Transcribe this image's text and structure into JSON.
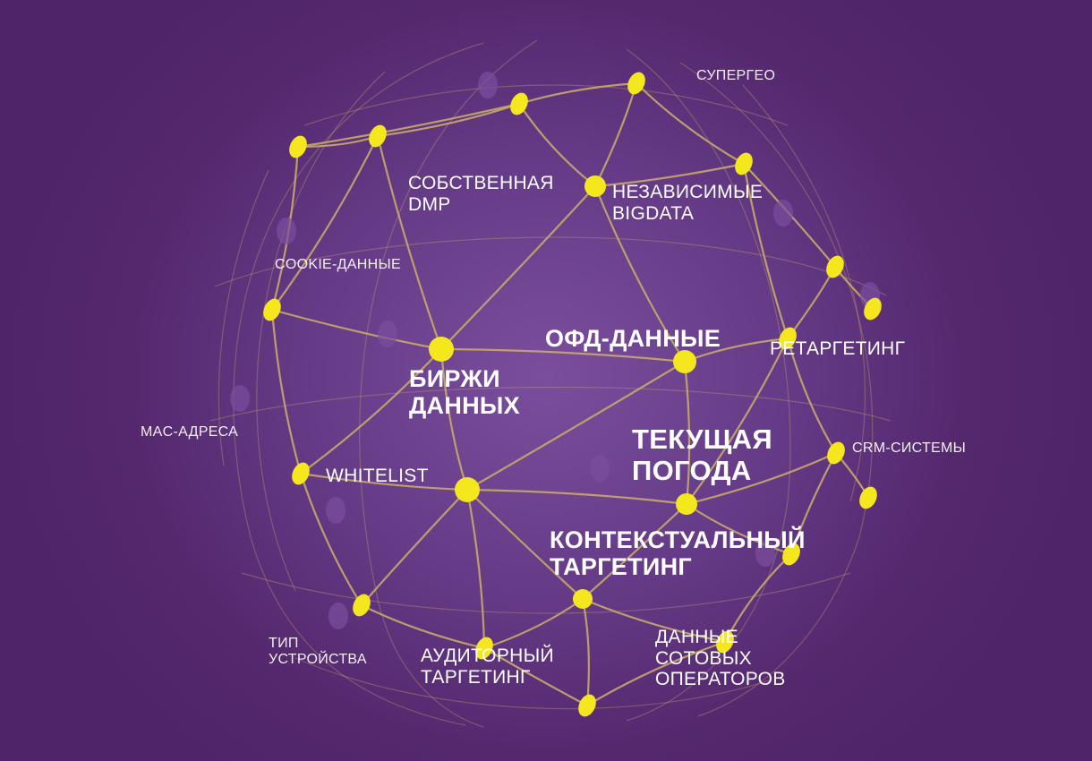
{
  "colors": {
    "background": "#5a2a76",
    "line": "#c8a96b",
    "node": "#f5e71e",
    "ghost_node": "#7b4f9e",
    "text": "#ffffff"
  },
  "labels": {
    "supergeo": "СУПЕРГЕО",
    "own_dmp": "СОБСТВЕННАЯ\nDMP",
    "independent_bigdata": "НЕЗАВИСИМЫЕ\nBIGDATA",
    "cookie_data": "COOKIE-ДАННЫЕ",
    "ofd_data": "ОФД-ДАННЫЕ",
    "retargeting": "РЕТАРГЕТИНГ",
    "data_exchanges": "БИРЖИ\nДАННЫХ",
    "mac_addresses": "MAC-АДРЕСА",
    "current_weather": "ТЕКУЩАЯ\nПОГОДА",
    "crm_systems": "CRM-СИСТЕМЫ",
    "whitelist": "WHITELIST",
    "contextual_targeting": "КОНТЕКСТУАЛЬНЫЙ\nТАРГЕТИНГ",
    "device_type": "ТИП\nУСТРОЙСТВА",
    "audience_targeting": "АУДИТОРНЫЙ\nТАРГЕТИНГ",
    "mobile_operator_data": "ДАННЫЕ\nСОТОВЫХ\nОПЕРАТОРОВ"
  }
}
